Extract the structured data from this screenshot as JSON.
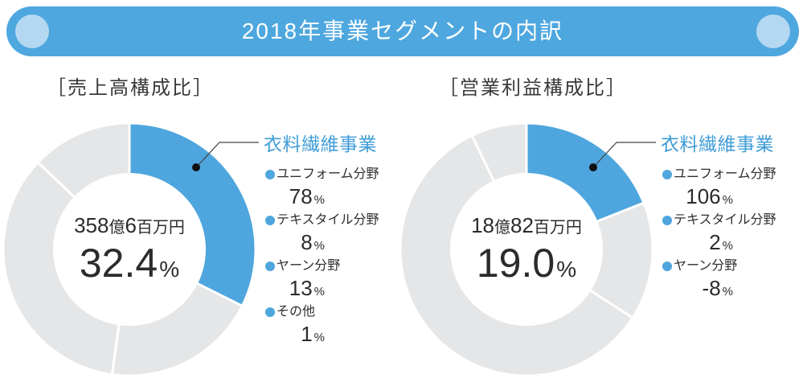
{
  "title": "2018年事業セグメントの内訳",
  "colors": {
    "banner": "#4ea7df",
    "banner_dots": "#b4d8f1",
    "highlight_slice": "#4fa6de",
    "other_slices": "#e5e6e7",
    "legend_title": "#3f9cd7",
    "text": "#333333"
  },
  "chart_data": [
    {
      "type": "pie",
      "style": "donut",
      "title": "［売上高構成比］",
      "center": {
        "amount": "358億6百万円",
        "percent": "32.4",
        "unit": "%"
      },
      "slices": [
        {
          "name": "衣料繊維事業",
          "value": 32.4,
          "highlight": true
        },
        {
          "value": 19.8
        },
        {
          "value": 34.9
        },
        {
          "value": 12.9
        }
      ],
      "breakdown": [
        {
          "label": "ユニフォーム分野",
          "value": 78,
          "unit": "%"
        },
        {
          "label": "テキスタイル分野",
          "value": 8,
          "unit": "%"
        },
        {
          "label": "ヤーン分野",
          "value": 13,
          "unit": "%"
        },
        {
          "label": "その他",
          "value": 1,
          "unit": "%"
        }
      ]
    },
    {
      "type": "pie",
      "style": "donut",
      "title": "［営業利益構成比］",
      "center": {
        "amount": "18億82百万円",
        "percent": "19.0",
        "unit": "%"
      },
      "slices": [
        {
          "name": "衣料繊維事業",
          "value": 19.0,
          "highlight": true
        },
        {
          "value": 15.1
        },
        {
          "value": 58.8
        },
        {
          "value": 7.1
        }
      ],
      "breakdown": [
        {
          "label": "ユニフォーム分野",
          "value": 106,
          "unit": "%"
        },
        {
          "label": "テキスタイル分野",
          "value": 2,
          "unit": "%"
        },
        {
          "label": "ヤーン分野",
          "value": -8,
          "unit": "%"
        }
      ]
    }
  ]
}
